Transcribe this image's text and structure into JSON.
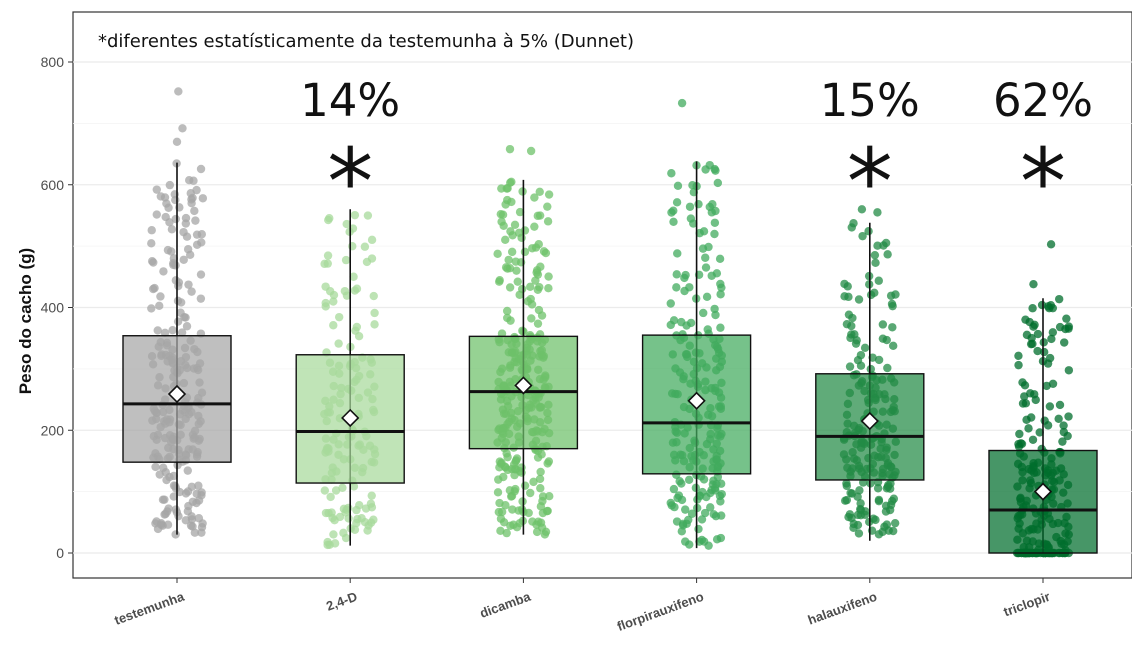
{
  "note": "*diferentes estatísticamente da testemunha à 5% (Dunnet)",
  "colors": {
    "testemunha": "#a6a6a6",
    "2,4-D": "#a7d99b",
    "dicamba": "#6dc16a",
    "florpirauxifeno": "#41ab5d",
    "halauxifeno": "#238b45",
    "triclopir": "#006d2c"
  },
  "chart_data": {
    "type": "box",
    "title": "",
    "xlabel": "",
    "ylabel": "Peso do cacho (g)",
    "ylim": [
      -40,
      900
    ],
    "yticks": [
      0,
      200,
      400,
      600,
      800
    ],
    "grid": true,
    "legend": "none",
    "categories": [
      "testemunha",
      "2,4-D",
      "dicamba",
      "florpirauxifeno",
      "halauxifeno",
      "triclopir"
    ],
    "boxes": [
      {
        "category": "testemunha",
        "whisker_low": 30,
        "q1": 148,
        "median": 243,
        "q3": 354,
        "whisker_high": 636,
        "mean": 259,
        "outliers": [
          670,
          692,
          752
        ],
        "jitter_n": 240
      },
      {
        "category": "2,4-D",
        "whisker_low": 12,
        "q1": 114,
        "median": 198,
        "q3": 323,
        "whisker_high": 560,
        "mean": 220,
        "outliers": [],
        "jitter_n": 150
      },
      {
        "category": "dicamba",
        "whisker_low": 30,
        "q1": 170,
        "median": 263,
        "q3": 353,
        "whisker_high": 608,
        "mean": 273,
        "outliers": [
          655,
          658
        ],
        "jitter_n": 300
      },
      {
        "category": "florpirauxifeno",
        "whisker_low": 8,
        "q1": 129,
        "median": 212,
        "q3": 355,
        "whisker_high": 638,
        "mean": 248,
        "outliers": [
          733
        ],
        "jitter_n": 220
      },
      {
        "category": "halauxifeno",
        "whisker_low": 20,
        "q1": 119,
        "median": 190,
        "q3": 292,
        "whisker_high": 538,
        "mean": 215,
        "outliers": [
          555,
          560
        ],
        "jitter_n": 200
      },
      {
        "category": "triclopir",
        "whisker_low": 0,
        "q1": 0,
        "median": 70,
        "q3": 167,
        "whisker_high": 415,
        "mean": 100,
        "outliers": [
          438,
          503
        ],
        "jitter_n": 230
      }
    ],
    "annotations": [
      {
        "category": "2,4-D",
        "percent": "14%",
        "star": "*"
      },
      {
        "category": "halauxifeno",
        "percent": "15%",
        "star": "*"
      },
      {
        "category": "triclopir",
        "percent": "62%",
        "star": "*"
      }
    ]
  }
}
